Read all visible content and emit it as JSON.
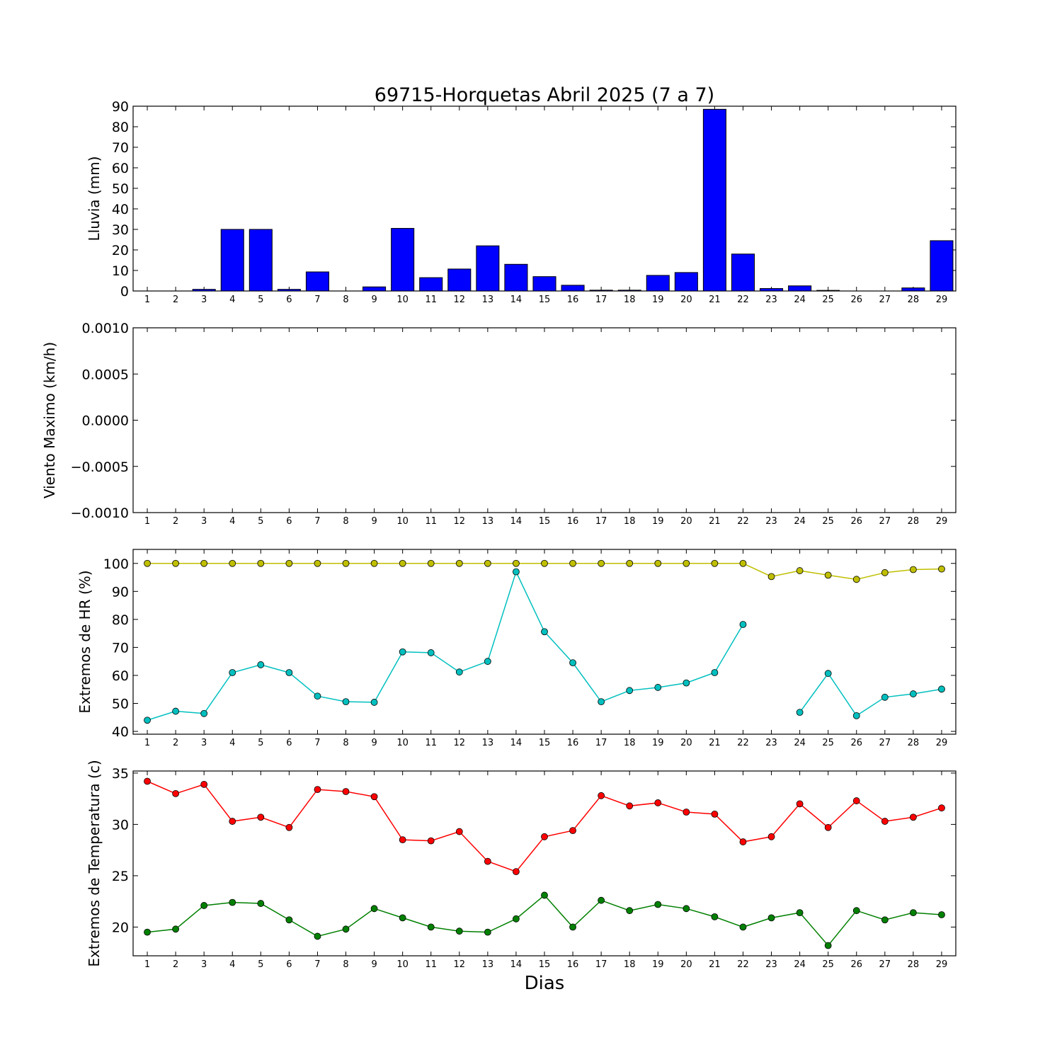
{
  "figure": {
    "title": "69715-Horquetas Abril 2025  (7 a 7)",
    "xlabel": "Dias"
  },
  "chart_data": [
    {
      "type": "bar",
      "title": "69715-Horquetas Abril 2025  (7 a 7)",
      "ylabel": "Lluvia (mm)",
      "xlabel": "",
      "categories": [
        "1",
        "2",
        "3",
        "4",
        "5",
        "6",
        "7",
        "8",
        "9",
        "10",
        "11",
        "12",
        "13",
        "14",
        "15",
        "16",
        "17",
        "18",
        "19",
        "20",
        "21",
        "22",
        "23",
        "24",
        "25",
        "26",
        "27",
        "28",
        "29"
      ],
      "ylim": [
        0,
        90
      ],
      "yticks": [
        0,
        10,
        20,
        30,
        40,
        50,
        60,
        70,
        80,
        90
      ],
      "ytick_labels": [
        "0",
        "10",
        "20",
        "30",
        "40",
        "50",
        "60",
        "70",
        "80",
        "90"
      ],
      "series": [
        {
          "color": "#0000ff",
          "values": [
            0,
            0,
            0.8,
            30,
            30,
            0.8,
            9.3,
            0,
            2,
            30.5,
            6.5,
            10.7,
            22,
            13,
            7,
            2.8,
            0.4,
            0.4,
            7.6,
            9,
            88.5,
            18,
            1.2,
            2.5,
            0.3,
            0,
            0,
            1.5,
            24.5
          ]
        }
      ]
    },
    {
      "type": "line",
      "ylabel": "Viento Maximo (km/h)",
      "xlabel": "",
      "categories": [
        "1",
        "2",
        "3",
        "4",
        "5",
        "6",
        "7",
        "8",
        "9",
        "10",
        "11",
        "12",
        "13",
        "14",
        "15",
        "16",
        "17",
        "18",
        "19",
        "20",
        "21",
        "22",
        "23",
        "24",
        "25",
        "26",
        "27",
        "28",
        "29"
      ],
      "ylim": [
        -0.001,
        0.001
      ],
      "yticks": [
        -0.001,
        -0.0005,
        0,
        0.0005,
        0.001
      ],
      "ytick_labels": [
        "−0.0010",
        "−0.0005",
        "0.0000",
        "0.0005",
        "0.0010"
      ],
      "series": []
    },
    {
      "type": "line",
      "ylabel": "Extremos de HR (%)",
      "xlabel": "",
      "categories": [
        "1",
        "2",
        "3",
        "4",
        "5",
        "6",
        "7",
        "8",
        "9",
        "10",
        "11",
        "12",
        "13",
        "14",
        "15",
        "16",
        "17",
        "18",
        "19",
        "20",
        "21",
        "22",
        "23",
        "24",
        "25",
        "26",
        "27",
        "28",
        "29"
      ],
      "ylim": [
        39,
        105
      ],
      "yticks": [
        40,
        50,
        60,
        70,
        80,
        90,
        100
      ],
      "ytick_labels": [
        "40",
        "50",
        "60",
        "70",
        "80",
        "90",
        "100"
      ],
      "series": [
        {
          "color": "#bfbf00",
          "values": [
            100,
            100,
            100,
            100,
            100,
            100,
            100,
            100,
            100,
            100,
            100,
            100,
            100,
            100,
            100,
            100,
            100,
            100,
            100,
            100,
            100,
            100,
            95.3,
            97.4,
            95.8,
            94.3,
            96.7,
            97.8,
            98.0
          ]
        },
        {
          "color": "#00bfbf",
          "values": [
            44,
            47.2,
            46.4,
            61,
            63.8,
            61,
            52.6,
            50.6,
            50.4,
            68.4,
            68.1,
            61.2,
            65,
            97,
            75.6,
            64.5,
            50.6,
            54.6,
            55.7,
            57.3,
            61,
            78.2,
            null,
            46.8,
            60.7,
            45.6,
            52.2,
            53.4,
            55.1
          ]
        }
      ]
    },
    {
      "type": "line",
      "ylabel": "Extremos de Temperatura (c)",
      "xlabel": "Dias",
      "categories": [
        "1",
        "2",
        "3",
        "4",
        "5",
        "6",
        "7",
        "8",
        "9",
        "10",
        "11",
        "12",
        "13",
        "14",
        "15",
        "16",
        "17",
        "18",
        "19",
        "20",
        "21",
        "22",
        "23",
        "24",
        "25",
        "26",
        "27",
        "28",
        "29"
      ],
      "ylim": [
        17.2,
        35.2
      ],
      "yticks": [
        20,
        25,
        30,
        35
      ],
      "ytick_labels": [
        "20",
        "25",
        "30",
        "35"
      ],
      "series": [
        {
          "color": "#ff0000",
          "values": [
            34.2,
            33.0,
            33.9,
            30.3,
            30.7,
            29.7,
            33.4,
            33.2,
            32.7,
            28.5,
            28.4,
            29.3,
            26.4,
            25.4,
            28.8,
            29.4,
            32.8,
            31.8,
            32.1,
            31.2,
            31.0,
            28.3,
            28.8,
            32.0,
            29.7,
            32.3,
            30.3,
            30.7,
            31.6
          ]
        },
        {
          "color": "#008000",
          "values": [
            19.5,
            19.8,
            22.1,
            22.4,
            22.3,
            20.7,
            19.1,
            19.8,
            21.8,
            20.9,
            20.0,
            19.6,
            19.5,
            20.8,
            23.1,
            20.0,
            22.6,
            21.6,
            22.2,
            21.8,
            21.0,
            20.0,
            20.9,
            21.4,
            18.2,
            21.6,
            20.7,
            21.4,
            21.2
          ]
        }
      ]
    }
  ]
}
